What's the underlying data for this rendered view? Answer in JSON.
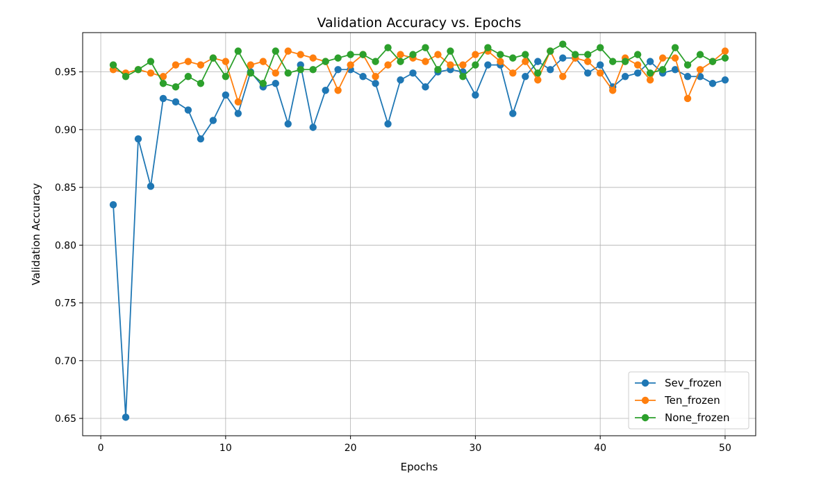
{
  "chart_data": {
    "type": "line",
    "title": "Validation Accuracy vs. Epochs",
    "xlabel": "Epochs",
    "ylabel": "Validation Accuracy",
    "xlim": [
      -1.45,
      52.45
    ],
    "ylim": [
      0.635,
      0.984
    ],
    "xticks": [
      0,
      10,
      20,
      30,
      40,
      50
    ],
    "yticks": [
      0.65,
      0.7,
      0.75,
      0.8,
      0.85,
      0.9,
      0.95
    ],
    "xtick_labels": [
      "0",
      "10",
      "20",
      "30",
      "40",
      "50"
    ],
    "ytick_labels": [
      "0.65",
      "0.70",
      "0.75",
      "0.80",
      "0.85",
      "0.90",
      "0.95"
    ],
    "grid": true,
    "legend_position": "bottom-right",
    "x": [
      1,
      2,
      3,
      4,
      5,
      6,
      7,
      8,
      9,
      10,
      11,
      12,
      13,
      14,
      15,
      16,
      17,
      18,
      19,
      20,
      21,
      22,
      23,
      24,
      25,
      26,
      27,
      28,
      29,
      30,
      31,
      32,
      33,
      34,
      35,
      36,
      37,
      38,
      39,
      40,
      41,
      42,
      43,
      44,
      45,
      46,
      47,
      48,
      49,
      50
    ],
    "series": [
      {
        "name": "Sev_frozen",
        "color": "#1f77b4",
        "values": [
          0.835,
          0.651,
          0.892,
          0.851,
          0.927,
          0.924,
          0.917,
          0.892,
          0.908,
          0.93,
          0.914,
          0.95,
          0.937,
          0.94,
          0.905,
          0.956,
          0.902,
          0.934,
          0.952,
          0.952,
          0.946,
          0.94,
          0.905,
          0.943,
          0.949,
          0.937,
          0.95,
          0.952,
          0.95,
          0.93,
          0.956,
          0.956,
          0.914,
          0.946,
          0.959,
          0.952,
          0.962,
          0.962,
          0.949,
          0.956,
          0.937,
          0.946,
          0.949,
          0.959,
          0.949,
          0.952,
          0.946,
          0.946,
          0.94,
          0.943
        ]
      },
      {
        "name": "Ten_frozen",
        "color": "#ff7f0e",
        "values": [
          0.952,
          0.949,
          0.952,
          0.949,
          0.946,
          0.956,
          0.959,
          0.956,
          0.962,
          0.959,
          0.924,
          0.956,
          0.959,
          0.949,
          0.968,
          0.965,
          0.962,
          0.959,
          0.934,
          0.956,
          0.965,
          0.946,
          0.956,
          0.965,
          0.962,
          0.959,
          0.965,
          0.956,
          0.956,
          0.965,
          0.968,
          0.959,
          0.949,
          0.959,
          0.943,
          0.968,
          0.946,
          0.962,
          0.959,
          0.949,
          0.934,
          0.962,
          0.956,
          0.943,
          0.962,
          0.962,
          0.927,
          0.952,
          0.959,
          0.968
        ]
      },
      {
        "name": "None_frozen",
        "color": "#2ca02c",
        "values": [
          0.956,
          0.946,
          0.952,
          0.959,
          0.94,
          0.937,
          0.946,
          0.94,
          0.962,
          0.946,
          0.968,
          0.949,
          0.94,
          0.968,
          0.949,
          0.952,
          0.952,
          0.959,
          0.962,
          0.965,
          0.965,
          0.959,
          0.971,
          0.959,
          0.965,
          0.971,
          0.952,
          0.968,
          0.946,
          0.956,
          0.971,
          0.965,
          0.962,
          0.965,
          0.949,
          0.968,
          0.974,
          0.965,
          0.965,
          0.971,
          0.959,
          0.959,
          0.965,
          0.949,
          0.952,
          0.971,
          0.956,
          0.965,
          0.959,
          0.962
        ]
      }
    ]
  }
}
